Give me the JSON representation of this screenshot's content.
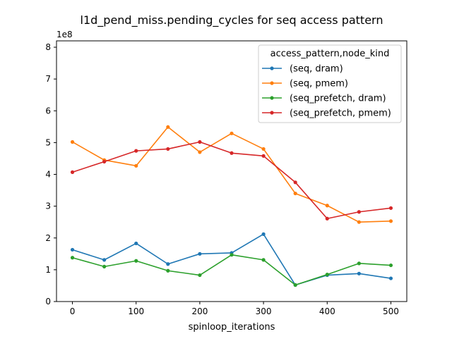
{
  "chart_data": {
    "type": "line",
    "title": "l1d_pend_miss.pending_cycles for seq access pattern",
    "xlabel": "spinloop_iterations",
    "ylabel": "",
    "y_offset_label": "1e8",
    "x": [
      0,
      50,
      100,
      150,
      200,
      250,
      300,
      350,
      400,
      450,
      500
    ],
    "xlim": [
      -25,
      525
    ],
    "ylim": [
      0,
      8.2
    ],
    "xticks": [
      0,
      100,
      200,
      300,
      400,
      500
    ],
    "yticks": [
      0,
      1,
      2,
      3,
      4,
      5,
      6,
      7,
      8
    ],
    "grid": false,
    "legend": {
      "title": "access_pattern,node_kind",
      "placement": "upper-right"
    },
    "series": [
      {
        "name": "(seq, dram)",
        "color": "#1f77b4",
        "values": [
          1.63,
          1.31,
          1.83,
          1.18,
          1.5,
          1.53,
          2.12,
          0.52,
          0.83,
          0.88,
          0.73
        ]
      },
      {
        "name": "(seq, pmem)",
        "color": "#ff7f0e",
        "values": [
          5.02,
          4.45,
          4.27,
          5.49,
          4.7,
          5.29,
          4.8,
          3.4,
          3.02,
          2.5,
          2.53
        ]
      },
      {
        "name": "(seq_prefetch, dram)",
        "color": "#2ca02c",
        "values": [
          1.38,
          1.1,
          1.28,
          0.97,
          0.83,
          1.47,
          1.31,
          0.52,
          0.85,
          1.2,
          1.14
        ]
      },
      {
        "name": "(seq_prefetch, pmem)",
        "color": "#d62728",
        "values": [
          4.07,
          4.4,
          4.74,
          4.8,
          5.02,
          4.67,
          4.58,
          3.75,
          2.61,
          2.82,
          2.94
        ]
      }
    ]
  }
}
